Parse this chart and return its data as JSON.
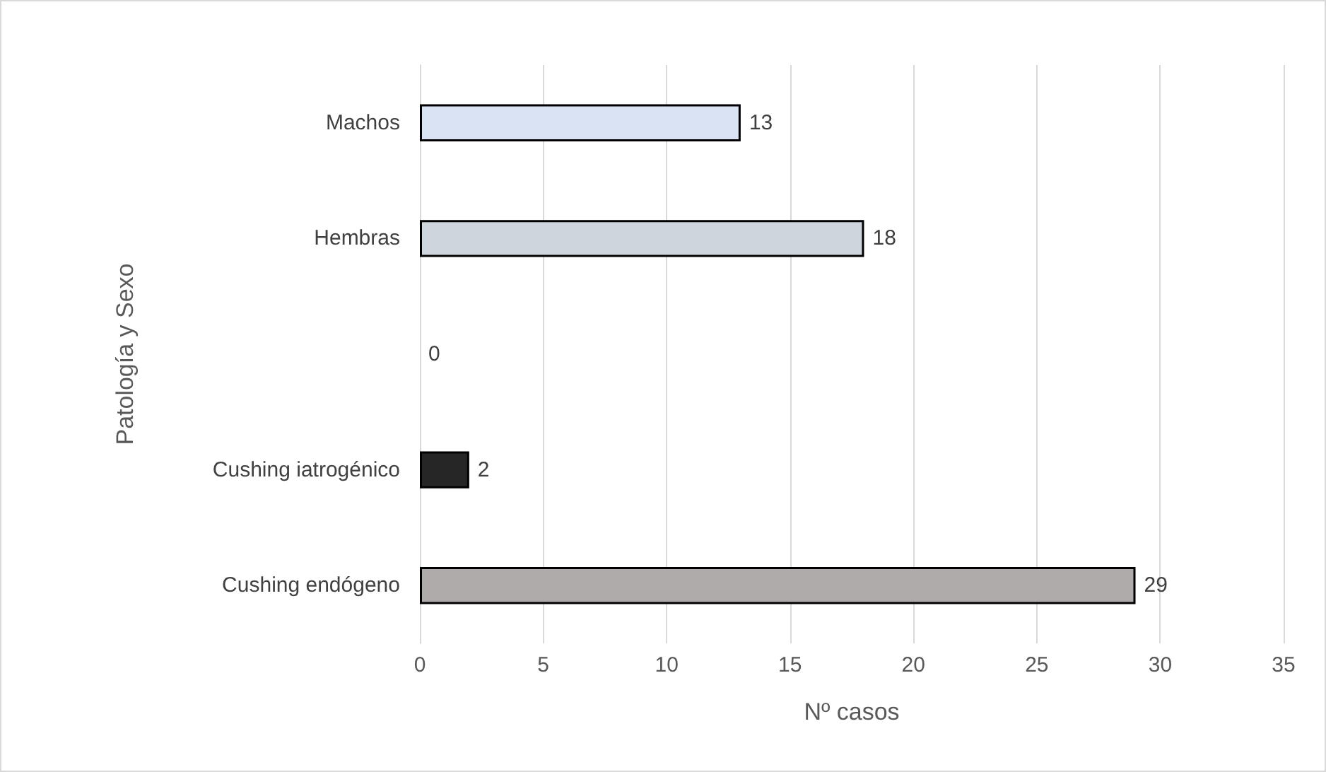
{
  "chart_data": {
    "type": "bar",
    "orientation": "horizontal",
    "xlabel": "Nº casos",
    "ylabel": "Patología y Sexo",
    "categories": [
      "Machos",
      "Hembras",
      null,
      "Cushing iatrogénico",
      "Cushing endógeno"
    ],
    "values": [
      13,
      18,
      0,
      2,
      29
    ],
    "colors": [
      "#dae3f3",
      "#cfd5dd",
      null,
      "#262626",
      "#b0abab"
    ],
    "xlim": [
      0,
      35
    ],
    "xticks": [
      0,
      5,
      10,
      15,
      20,
      25,
      30,
      35
    ],
    "grid": "x",
    "data_labels": true
  }
}
